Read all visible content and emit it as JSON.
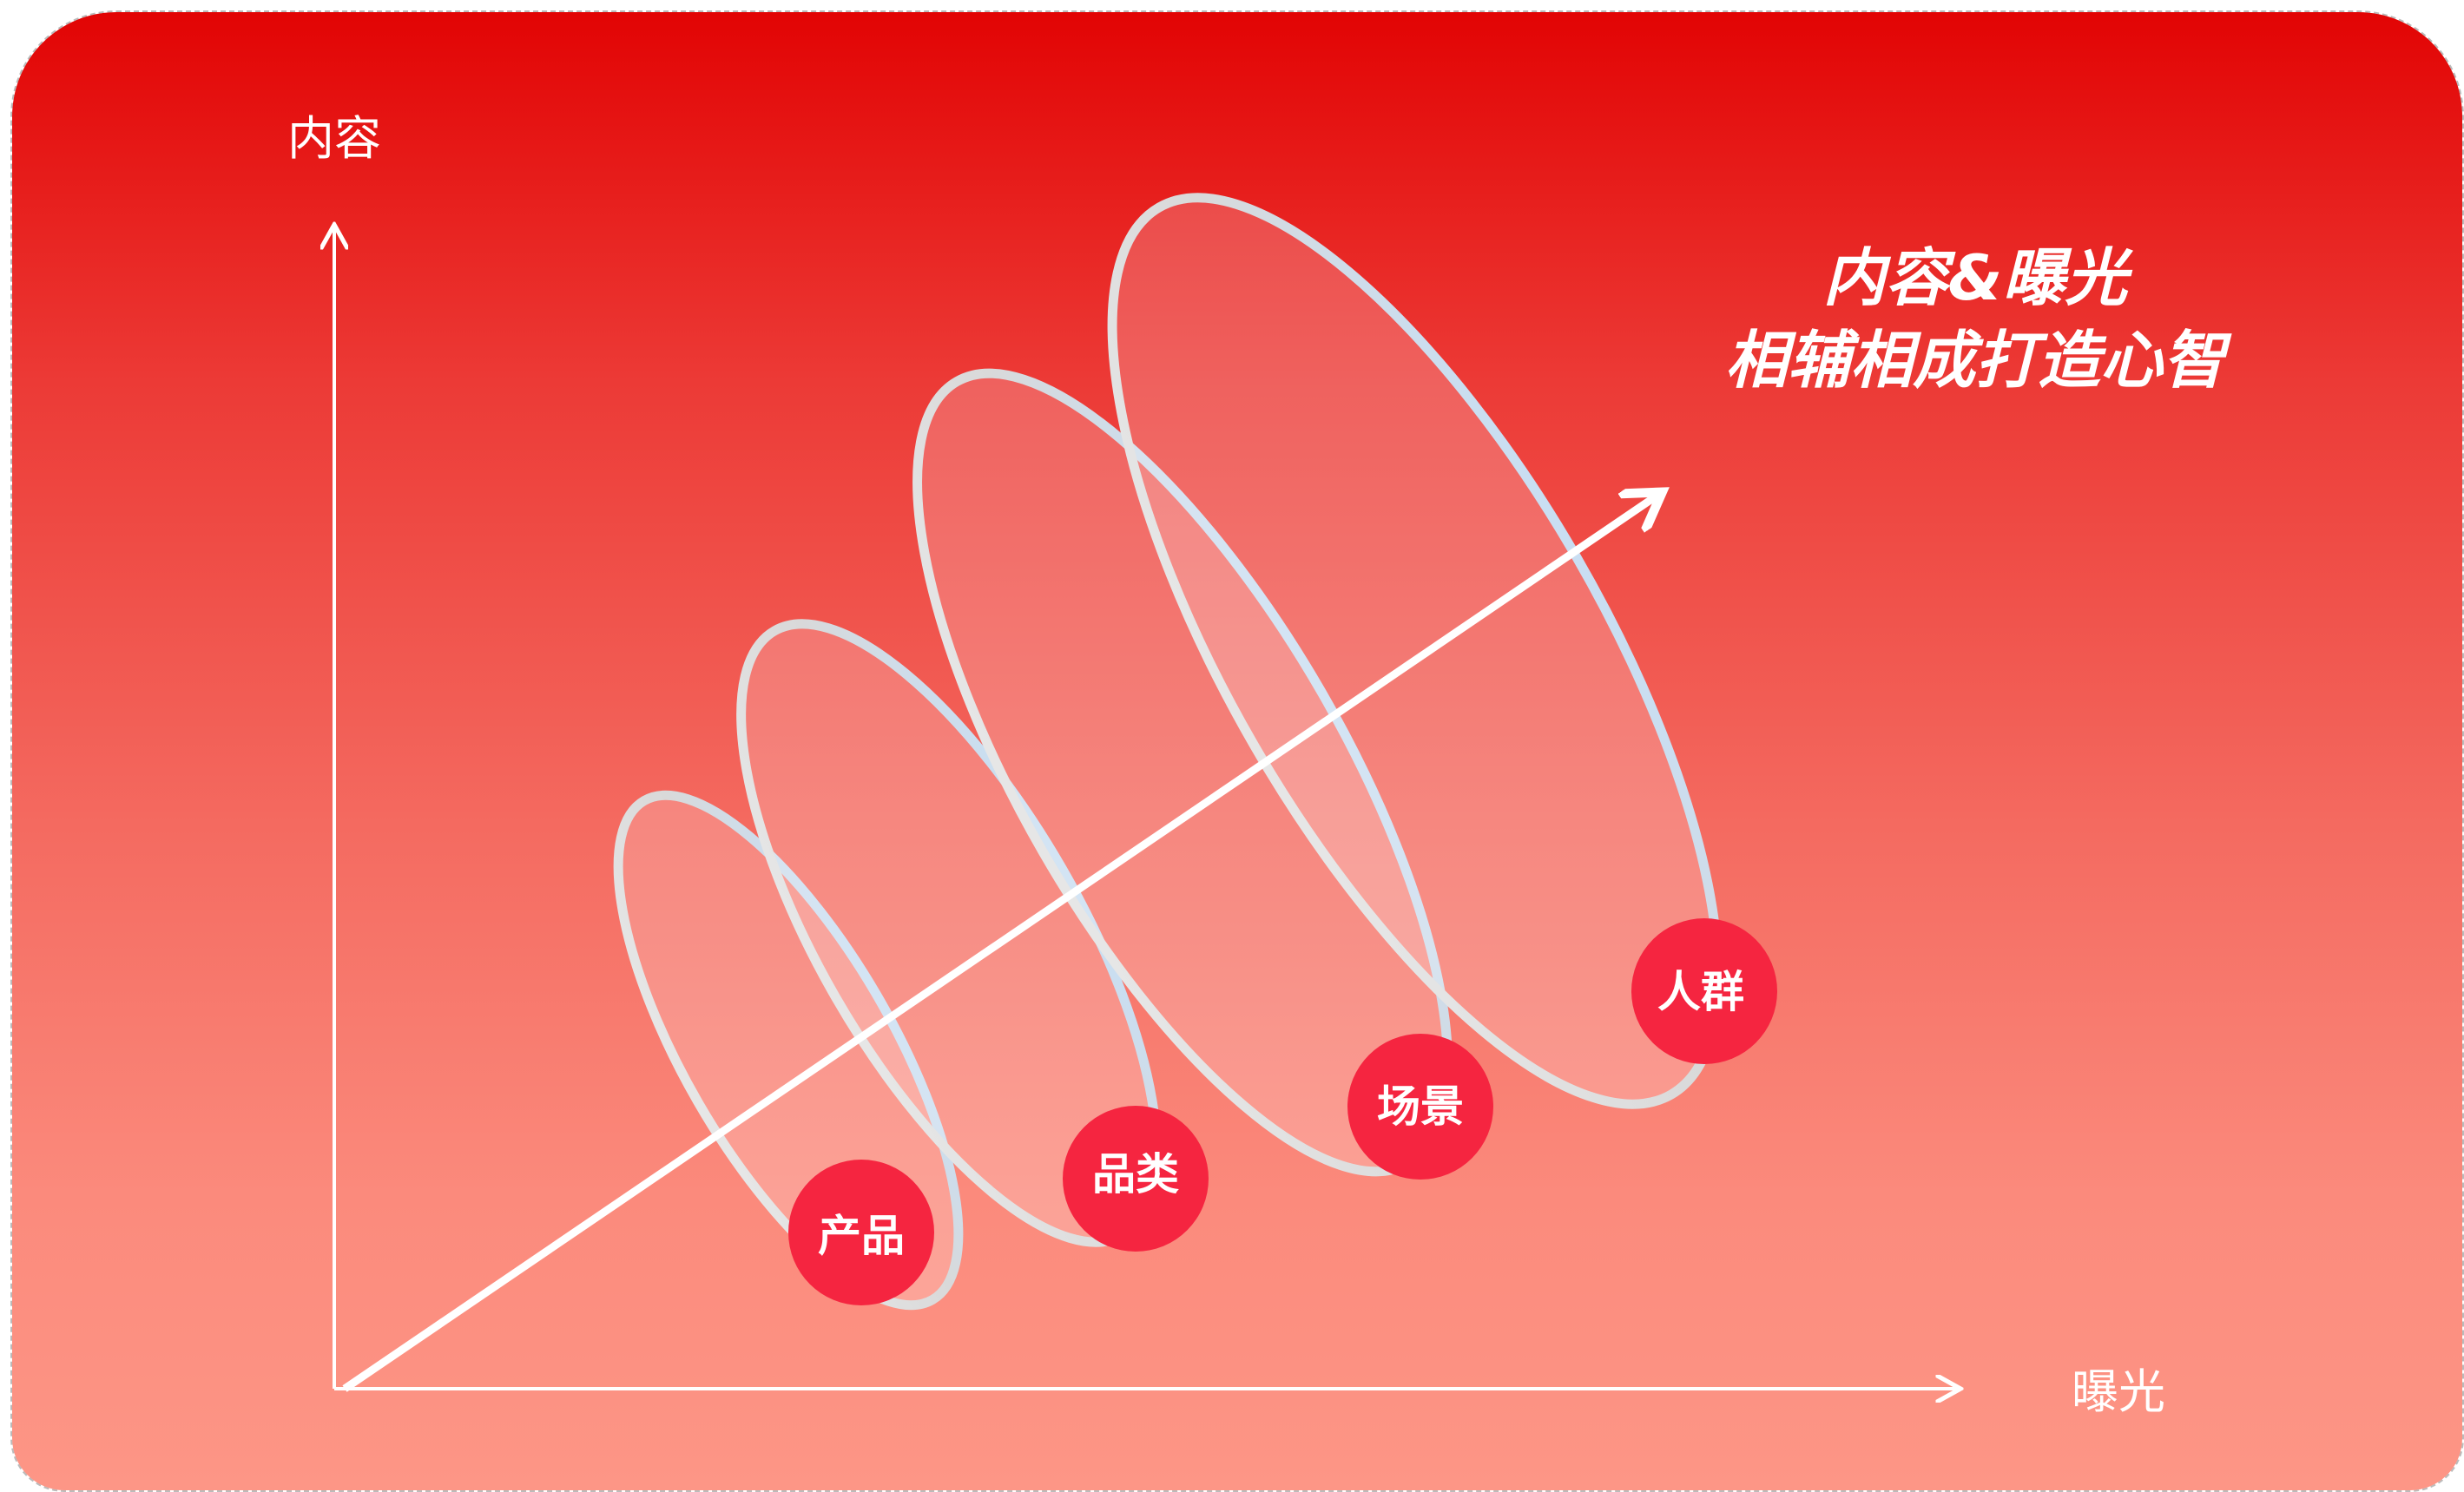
{
  "axes": {
    "y_label": "内容",
    "x_label": "曝光"
  },
  "headline": {
    "line1": "内容&曝光",
    "line2": "相辅相成打造心智"
  },
  "layers": [
    {
      "label": "产品"
    },
    {
      "label": "品类"
    },
    {
      "label": "场景"
    },
    {
      "label": "人群"
    }
  ],
  "colors": {
    "background_top": "#e20404",
    "background_bottom": "#fd9686",
    "badge": "#f52540",
    "line": "#ffffff"
  }
}
